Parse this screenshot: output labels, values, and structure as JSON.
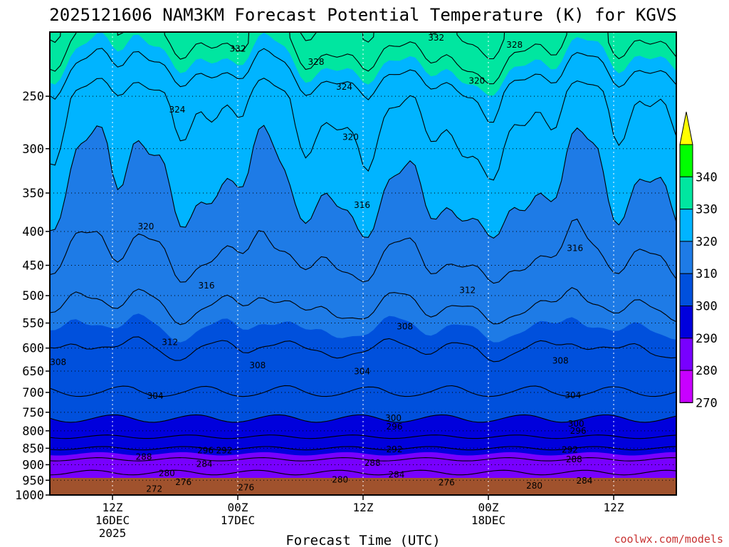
{
  "chart_data": {
    "type": "contour",
    "title": "2025121606 NAM3KM Forecast Potential Temperature (K) for KGVS",
    "xlabel": "Forecast Time (UTC)",
    "ylabel": "",
    "credit": "coolwx.com/models",
    "y_axis": {
      "scale": "pressure",
      "range": [
        1000,
        200
      ],
      "ticks": [
        250,
        300,
        350,
        400,
        450,
        500,
        550,
        600,
        650,
        700,
        750,
        800,
        850,
        900,
        950,
        1000
      ]
    },
    "x_axis": {
      "range_hours": [
        6,
        66
      ],
      "ticks": [
        {
          "hour": 12,
          "lines": [
            "12Z",
            "16DEC",
            "2025"
          ]
        },
        {
          "hour": 24,
          "lines": [
            "00Z",
            "17DEC"
          ]
        },
        {
          "hour": 36,
          "lines": [
            "12Z"
          ]
        },
        {
          "hour": 48,
          "lines": [
            "00Z",
            "18DEC"
          ]
        },
        {
          "hour": 60,
          "lines": [
            "12Z"
          ]
        }
      ]
    },
    "grid": true,
    "colorbar": {
      "position": "right",
      "levels": [
        270,
        280,
        290,
        300,
        310,
        320,
        330,
        340
      ],
      "labels": [
        "270",
        "280",
        "290",
        "300",
        "310",
        "320",
        "330",
        "340"
      ],
      "colors": [
        "#ff00ff",
        "#c800ff",
        "#7800ff",
        "#0000dc",
        "#0050dc",
        "#1e7be6",
        "#00b4ff",
        "#00e6a0",
        "#00ff00",
        "#ffff00"
      ]
    },
    "contour_labels": [
      {
        "value": "332",
        "hour": 24.0,
        "p": 212
      },
      {
        "value": "332",
        "hour": 43.0,
        "p": 204
      },
      {
        "value": "328",
        "hour": 31.5,
        "p": 222
      },
      {
        "value": "328",
        "hour": 50.5,
        "p": 209
      },
      {
        "value": "324",
        "hour": 18.2,
        "p": 262
      },
      {
        "value": "324",
        "hour": 34.2,
        "p": 242
      },
      {
        "value": "320",
        "hour": 34.8,
        "p": 288
      },
      {
        "value": "320",
        "hour": 46.9,
        "p": 237
      },
      {
        "value": "320",
        "hour": 15.2,
        "p": 393
      },
      {
        "value": "316",
        "hour": 35.9,
        "p": 365
      },
      {
        "value": "316",
        "hour": 56.3,
        "p": 424
      },
      {
        "value": "316",
        "hour": 21.0,
        "p": 483
      },
      {
        "value": "312",
        "hour": 17.5,
        "p": 588
      },
      {
        "value": "312",
        "hour": 46.0,
        "p": 491
      },
      {
        "value": "308",
        "hour": 6.8,
        "p": 630
      },
      {
        "value": "308",
        "hour": 25.9,
        "p": 637
      },
      {
        "value": "308",
        "hour": 40.0,
        "p": 557
      },
      {
        "value": "308",
        "hour": 54.9,
        "p": 627
      },
      {
        "value": "304",
        "hour": 16.1,
        "p": 709
      },
      {
        "value": "304",
        "hour": 35.9,
        "p": 651
      },
      {
        "value": "304",
        "hour": 56.1,
        "p": 707
      },
      {
        "value": "300",
        "hour": 38.9,
        "p": 765
      },
      {
        "value": "300",
        "hour": 56.4,
        "p": 781
      },
      {
        "value": "296",
        "hour": 39.0,
        "p": 788
      },
      {
        "value": "296",
        "hour": 56.6,
        "p": 800
      },
      {
        "value": "296",
        "hour": 20.9,
        "p": 857
      },
      {
        "value": "292",
        "hour": 22.7,
        "p": 857
      },
      {
        "value": "292",
        "hour": 39.0,
        "p": 853
      },
      {
        "value": "292",
        "hour": 55.8,
        "p": 855
      },
      {
        "value": "288",
        "hour": 15.0,
        "p": 876
      },
      {
        "value": "288",
        "hour": 36.9,
        "p": 895
      },
      {
        "value": "288",
        "hour": 56.2,
        "p": 884
      },
      {
        "value": "284",
        "hour": 20.8,
        "p": 898
      },
      {
        "value": "284",
        "hour": 39.2,
        "p": 932
      },
      {
        "value": "284",
        "hour": 57.2,
        "p": 952
      },
      {
        "value": "280",
        "hour": 17.2,
        "p": 927
      },
      {
        "value": "280",
        "hour": 33.8,
        "p": 948
      },
      {
        "value": "280",
        "hour": 52.4,
        "p": 968
      },
      {
        "value": "276",
        "hour": 18.8,
        "p": 957
      },
      {
        "value": "276",
        "hour": 24.8,
        "p": 974
      },
      {
        "value": "276",
        "hour": 44.0,
        "p": 958
      },
      {
        "value": "272",
        "hour": 16.0,
        "p": 979
      }
    ]
  }
}
